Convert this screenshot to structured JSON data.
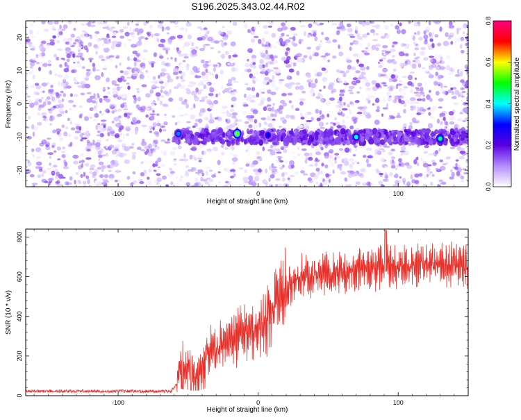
{
  "title": "S196.2025.343.02.44.R02",
  "chart_data": [
    {
      "type": "heatmap",
      "xlabel": "Height of straight line (km)",
      "ylabel": "Frequency (Hz)",
      "xlim": [
        -166,
        150
      ],
      "ylim": [
        -25,
        25
      ],
      "x_ticks": [
        -100,
        0,
        100
      ],
      "y_ticks": [
        -20,
        -10,
        0,
        10,
        20
      ],
      "colorbar": {
        "label": "Normalized spectral amplitude",
        "range": [
          0,
          0.8
        ],
        "ticks": [
          "0.0",
          "0.2",
          "0.4",
          "0.6",
          "0.8"
        ],
        "colors": [
          "#ffffff",
          "#b48cff",
          "#5a00e0",
          "#0000ff",
          "#00ffff",
          "#00ff00",
          "#ffff00",
          "#ff0000",
          "#ff0080"
        ]
      },
      "feature_band": {
        "frequency": -10,
        "x_start": -60,
        "x_end": 150
      },
      "clear_region": {
        "x_start": -15,
        "x_end": -10
      },
      "peaks": [
        {
          "x": -57,
          "y": -9,
          "amplitude": 0.35
        },
        {
          "x": -15,
          "y": -9,
          "amplitude": 0.55
        },
        {
          "x": 7,
          "y": -9.5,
          "amplitude": 0.3
        },
        {
          "x": 70,
          "y": -10,
          "amplitude": 0.4
        },
        {
          "x": 130,
          "y": -10.5,
          "amplitude": 0.45
        }
      ]
    },
    {
      "type": "line",
      "xlabel": "Height of straight line (km)",
      "ylabel": "SNR (10 * v/v)",
      "xlim": [
        -166,
        150
      ],
      "ylim": [
        0,
        840
      ],
      "x_ticks": [
        -100,
        0,
        100
      ],
      "y_ticks": [
        0,
        200,
        400,
        600,
        800
      ],
      "series": [
        {
          "color": "#e8302a",
          "x": [
            -166,
            -120,
            -80,
            -62,
            -58,
            -55,
            -50,
            -45,
            -40,
            -35,
            -30,
            -25,
            -20,
            -15,
            -10,
            -5,
            0,
            5,
            10,
            15,
            20,
            25,
            30,
            40,
            50,
            60,
            70,
            80,
            90,
            100,
            110,
            120,
            130,
            140,
            150
          ],
          "values": [
            20,
            20,
            20,
            20,
            60,
            180,
            150,
            120,
            150,
            230,
            230,
            270,
            300,
            290,
            330,
            330,
            350,
            380,
            420,
            480,
            530,
            570,
            600,
            610,
            615,
            625,
            635,
            640,
            650,
            650,
            655,
            660,
            660,
            665,
            660
          ]
        }
      ]
    }
  ]
}
